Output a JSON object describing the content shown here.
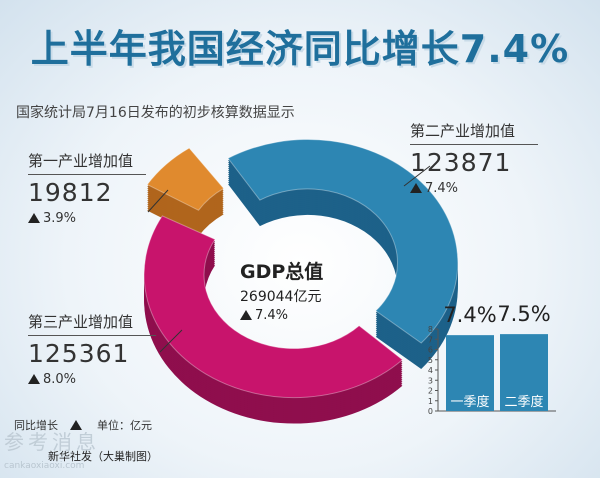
{
  "title": "上半年我国经济同比增长7.4%",
  "subtitle": "国家统计局7月16日发布的初步核算数据显示",
  "primary": {
    "label": "第一产业增加值",
    "value": "19812",
    "change": "3.9%"
  },
  "secondary": {
    "label": "第二产业增加值",
    "value": "123871",
    "change": "7.4%"
  },
  "tertiary": {
    "label": "第三产业增加值",
    "value": "125361",
    "change": "8.0%"
  },
  "center": {
    "label": "GDP总值",
    "value": "269044亿元",
    "change": "7.4%"
  },
  "legend": {
    "growth": "同比增长",
    "unit": "单位：亿元"
  },
  "footer": "新华社发（大巢制图）",
  "watermark": {
    "text": "参考消息",
    "url": "cankaoxiaoxi.com"
  },
  "colors": {
    "primary": "#e08a2e",
    "secondary": "#2d86b3",
    "tertiary": "#c8146c",
    "title": "#1f6f9c",
    "bar": "#2d86b3"
  },
  "chart_data": [
    {
      "type": "pie",
      "categories": [
        "第一产业增加值",
        "第二产业增加值",
        "第三产业增加值"
      ],
      "values": [
        19812,
        123871,
        125361
      ],
      "changes": [
        "3.9%",
        "7.4%",
        "8.0%"
      ],
      "total": 269044,
      "unit": "亿元"
    },
    {
      "type": "bar",
      "categories": [
        "一季度",
        "二季度"
      ],
      "values": [
        7.4,
        7.5
      ],
      "value_labels": [
        "7.4%",
        "7.5%"
      ],
      "ylim": [
        0,
        8
      ],
      "yticks": [
        0,
        1,
        2,
        3,
        4,
        5,
        6,
        7,
        8
      ]
    }
  ]
}
